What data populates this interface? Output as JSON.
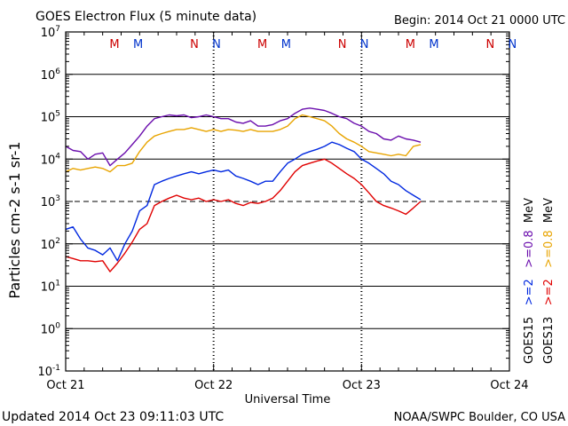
{
  "header": {
    "title": "GOES Electron Flux (5 minute data)",
    "begin": "Begin: 2014 Oct 21 0000 UTC"
  },
  "footer": {
    "updated": "Updated 2014 Oct 23 09:11:03 UTC",
    "credit": "NOAA/SWPC Boulder, CO USA"
  },
  "colors": {
    "goes15_high": "#6a0dad",
    "goes13_high": "#e8a400",
    "goes15_low": "#0028e0",
    "goes13_low": "#e00000",
    "marker_M": "#cc0000",
    "marker_N_red": "#cc0000",
    "marker_N_blue": "#0033cc"
  },
  "chart_data": {
    "type": "line",
    "title": "GOES Electron Flux (5 minute data)",
    "xlabel": "Universal Time",
    "ylabel": "Particles cm-2 s-1 sr-1",
    "y_scale": "log",
    "ylim": [
      0.1,
      10000000
    ],
    "xlim_days": [
      0,
      3
    ],
    "x_ticks": [
      {
        "day": 0,
        "label": "Oct 21"
      },
      {
        "day": 1,
        "label": "Oct 22"
      },
      {
        "day": 2,
        "label": "Oct 23"
      },
      {
        "day": 3,
        "label": "Oct 24"
      }
    ],
    "y_ticks": [
      {
        "exp": "-1",
        "value": 0.1
      },
      {
        "exp": "0",
        "value": 1
      },
      {
        "exp": "1",
        "value": 10
      },
      {
        "exp": "2",
        "value": 100
      },
      {
        "exp": "3",
        "value": 1000
      },
      {
        "exp": "4",
        "value": 10000
      },
      {
        "exp": "5",
        "value": 100000
      },
      {
        "exp": "6",
        "value": 1000000
      },
      {
        "exp": "7",
        "value": 10000000
      }
    ],
    "threshold": {
      "value": 1000,
      "style": "dashed"
    },
    "series": [
      {
        "name": "GOES15 >=0.8 MeV",
        "color": "#6a0dad",
        "x": [
          0.0,
          0.05,
          0.1,
          0.15,
          0.2,
          0.25,
          0.3,
          0.35,
          0.4,
          0.45,
          0.5,
          0.55,
          0.6,
          0.65,
          0.7,
          0.75,
          0.8,
          0.85,
          0.9,
          0.95,
          1.0,
          1.05,
          1.1,
          1.15,
          1.2,
          1.25,
          1.3,
          1.35,
          1.4,
          1.45,
          1.5,
          1.55,
          1.6,
          1.65,
          1.7,
          1.75,
          1.8,
          1.85,
          1.9,
          1.95,
          2.0,
          2.05,
          2.1,
          2.15,
          2.2,
          2.25,
          2.3,
          2.35,
          2.4
        ],
        "y": [
          20000,
          16000,
          15000,
          10000,
          13000,
          14000,
          7000,
          10000,
          14000,
          22000,
          35000,
          60000,
          90000,
          100000,
          110000,
          105000,
          110000,
          95000,
          100000,
          110000,
          100000,
          90000,
          90000,
          75000,
          70000,
          80000,
          60000,
          60000,
          65000,
          80000,
          90000,
          120000,
          150000,
          160000,
          150000,
          140000,
          120000,
          100000,
          90000,
          70000,
          60000,
          45000,
          40000,
          30000,
          28000,
          35000,
          30000,
          28000,
          25000
        ]
      },
      {
        "name": "GOES13 >=0.8 MeV",
        "color": "#e8a400",
        "x": [
          0.0,
          0.05,
          0.1,
          0.15,
          0.2,
          0.25,
          0.3,
          0.35,
          0.4,
          0.45,
          0.5,
          0.55,
          0.6,
          0.65,
          0.7,
          0.75,
          0.8,
          0.85,
          0.9,
          0.95,
          1.0,
          1.05,
          1.1,
          1.15,
          1.2,
          1.25,
          1.3,
          1.35,
          1.4,
          1.45,
          1.5,
          1.55,
          1.6,
          1.65,
          1.7,
          1.75,
          1.8,
          1.85,
          1.9,
          1.95,
          2.0,
          2.05,
          2.1,
          2.15,
          2.2,
          2.25,
          2.3,
          2.35,
          2.4
        ],
        "y": [
          5000,
          6000,
          5500,
          6000,
          6500,
          6000,
          5000,
          7000,
          7000,
          8000,
          15000,
          25000,
          35000,
          40000,
          45000,
          50000,
          50000,
          55000,
          50000,
          45000,
          50000,
          45000,
          50000,
          48000,
          45000,
          50000,
          45000,
          45000,
          45000,
          50000,
          60000,
          90000,
          110000,
          100000,
          90000,
          80000,
          60000,
          40000,
          30000,
          25000,
          20000,
          15000,
          14000,
          13000,
          12000,
          13000,
          12000,
          20000,
          22000
        ]
      },
      {
        "name": "GOES15 >=2 MeV",
        "color": "#0028e0",
        "x": [
          0.0,
          0.05,
          0.1,
          0.15,
          0.2,
          0.25,
          0.3,
          0.35,
          0.4,
          0.45,
          0.5,
          0.55,
          0.6,
          0.65,
          0.7,
          0.75,
          0.8,
          0.85,
          0.9,
          0.95,
          1.0,
          1.05,
          1.1,
          1.15,
          1.2,
          1.25,
          1.3,
          1.35,
          1.4,
          1.45,
          1.5,
          1.55,
          1.6,
          1.65,
          1.7,
          1.75,
          1.8,
          1.85,
          1.9,
          1.95,
          2.0,
          2.05,
          2.1,
          2.15,
          2.2,
          2.25,
          2.3,
          2.35,
          2.4
        ],
        "y": [
          220,
          250,
          130,
          80,
          70,
          55,
          80,
          40,
          100,
          200,
          600,
          800,
          2500,
          3000,
          3500,
          4000,
          4500,
          5000,
          4500,
          5000,
          5500,
          5000,
          5500,
          4000,
          3500,
          3000,
          2500,
          3000,
          3000,
          5000,
          8000,
          10000,
          13000,
          15000,
          17000,
          20000,
          25000,
          22000,
          18000,
          15000,
          10000,
          8000,
          6000,
          4500,
          3000,
          2500,
          1800,
          1400,
          1100
        ]
      },
      {
        "name": "GOES13 >=2 MeV",
        "color": "#e00000",
        "x": [
          0.0,
          0.05,
          0.1,
          0.15,
          0.2,
          0.25,
          0.3,
          0.35,
          0.4,
          0.45,
          0.5,
          0.55,
          0.6,
          0.65,
          0.7,
          0.75,
          0.8,
          0.85,
          0.9,
          0.95,
          1.0,
          1.05,
          1.1,
          1.15,
          1.2,
          1.25,
          1.3,
          1.35,
          1.4,
          1.45,
          1.5,
          1.55,
          1.6,
          1.65,
          1.7,
          1.75,
          1.8,
          1.85,
          1.9,
          1.95,
          2.0,
          2.05,
          2.1,
          2.15,
          2.2,
          2.25,
          2.3,
          2.35,
          2.4
        ],
        "y": [
          50,
          45,
          40,
          40,
          38,
          40,
          22,
          35,
          60,
          110,
          220,
          300,
          800,
          1000,
          1200,
          1400,
          1200,
          1100,
          1200,
          1000,
          1100,
          1000,
          1100,
          900,
          800,
          950,
          900,
          1000,
          1200,
          1800,
          3000,
          5000,
          7000,
          8000,
          9000,
          10000,
          8000,
          6000,
          4500,
          3500,
          2500,
          1600,
          1000,
          800,
          700,
          600,
          500,
          700,
          1000
        ]
      }
    ],
    "markers": [
      {
        "label": "M",
        "day": 0.33,
        "color": "#cc0000"
      },
      {
        "label": "M",
        "day": 0.49,
        "color": "#0033cc"
      },
      {
        "label": "N",
        "day": 0.87,
        "color": "#cc0000"
      },
      {
        "label": "N",
        "day": 1.02,
        "color": "#0033cc"
      },
      {
        "label": "M",
        "day": 1.33,
        "color": "#cc0000"
      },
      {
        "label": "M",
        "day": 1.49,
        "color": "#0033cc"
      },
      {
        "label": "N",
        "day": 1.87,
        "color": "#cc0000"
      },
      {
        "label": "N",
        "day": 2.02,
        "color": "#0033cc"
      },
      {
        "label": "M",
        "day": 2.33,
        "color": "#cc0000"
      },
      {
        "label": "M",
        "day": 2.49,
        "color": "#0033cc"
      },
      {
        "label": "N",
        "day": 2.87,
        "color": "#cc0000"
      },
      {
        "label": "N",
        "day": 3.02,
        "color": "#0033cc"
      }
    ],
    "legend": {
      "placement": "right",
      "groups": [
        {
          "sat": "GOES15",
          "low": ">=2",
          "high": ">=0.8",
          "unit": "MeV",
          "low_color": "#0028e0",
          "high_color": "#6a0dad"
        },
        {
          "sat": "GOES13",
          "low": ">=2",
          "high": ">=0.8",
          "unit": "MeV",
          "low_color": "#e00000",
          "high_color": "#e8a400"
        }
      ]
    }
  }
}
